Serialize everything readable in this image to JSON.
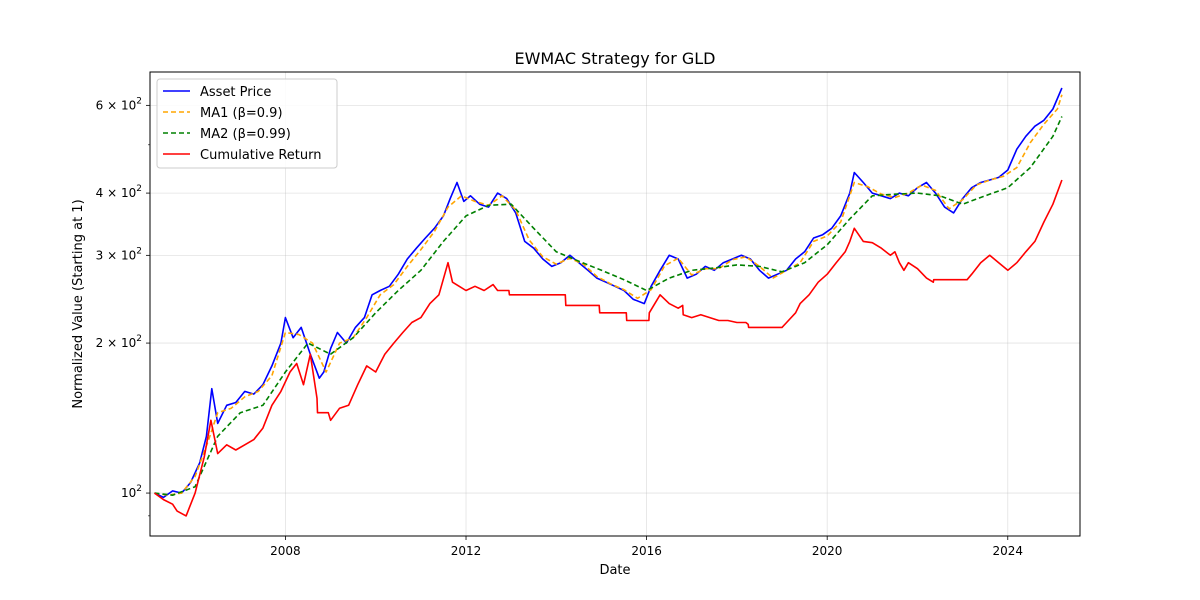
{
  "chart_data": {
    "type": "line",
    "title": "EWMAC Strategy for GLD",
    "xlabel": "Date",
    "ylabel": "Normalized Value (Starting at 1)",
    "yscale": "log",
    "ylim": [
      82,
      700
    ],
    "xlim": [
      2005.0,
      2025.6
    ],
    "grid": true,
    "legend_position": "top-left",
    "x_ticks": [
      {
        "value": 2008,
        "label": "2008"
      },
      {
        "value": 2012,
        "label": "2012"
      },
      {
        "value": 2016,
        "label": "2016"
      },
      {
        "value": 2020,
        "label": "2020"
      },
      {
        "value": 2024,
        "label": "2024"
      }
    ],
    "y_major_ticks": [
      {
        "value": 100,
        "base": "10",
        "exp": "2",
        "mult": ""
      },
      {
        "value": 200,
        "base": "10",
        "exp": "2",
        "mult": "2 × "
      },
      {
        "value": 300,
        "base": "10",
        "exp": "2",
        "mult": "3 × "
      },
      {
        "value": 400,
        "base": "10",
        "exp": "2",
        "mult": "4 × "
      },
      {
        "value": 600,
        "base": "10",
        "exp": "2",
        "mult": "6 × "
      }
    ],
    "series": [
      {
        "name": "Asset Price",
        "color": "#0000ff",
        "dash": "solid",
        "x": [
          2005.1,
          2005.3,
          2005.5,
          2005.7,
          2005.9,
          2006.1,
          2006.25,
          2006.37,
          2006.5,
          2006.7,
          2006.9,
          2007.1,
          2007.3,
          2007.5,
          2007.7,
          2007.9,
          2008.0,
          2008.17,
          2008.35,
          2008.55,
          2008.75,
          2008.85,
          2009.0,
          2009.15,
          2009.35,
          2009.55,
          2009.75,
          2009.92,
          2010.1,
          2010.3,
          2010.5,
          2010.7,
          2010.9,
          2011.1,
          2011.3,
          2011.5,
          2011.65,
          2011.8,
          2011.95,
          2012.1,
          2012.3,
          2012.5,
          2012.7,
          2012.9,
          2013.1,
          2013.3,
          2013.5,
          2013.7,
          2013.9,
          2014.1,
          2014.3,
          2014.5,
          2014.7,
          2014.9,
          2015.1,
          2015.3,
          2015.5,
          2015.7,
          2015.95,
          2016.1,
          2016.3,
          2016.5,
          2016.7,
          2016.9,
          2017.1,
          2017.3,
          2017.5,
          2017.7,
          2017.9,
          2018.1,
          2018.3,
          2018.5,
          2018.7,
          2018.9,
          2019.1,
          2019.3,
          2019.5,
          2019.7,
          2019.9,
          2020.1,
          2020.3,
          2020.5,
          2020.6,
          2020.8,
          2021.0,
          2021.2,
          2021.4,
          2021.6,
          2021.8,
          2022.0,
          2022.2,
          2022.4,
          2022.6,
          2022.8,
          2023.0,
          2023.2,
          2023.4,
          2023.6,
          2023.8,
          2024.0,
          2024.2,
          2024.4,
          2024.6,
          2024.8,
          2025.0,
          2025.2
        ],
        "y": [
          100,
          98,
          101,
          100,
          105,
          115,
          130,
          162,
          138,
          150,
          152,
          160,
          158,
          165,
          180,
          200,
          225,
          205,
          215,
          190,
          170,
          175,
          195,
          210,
          200,
          215,
          225,
          250,
          255,
          260,
          275,
          295,
          310,
          325,
          340,
          360,
          390,
          420,
          385,
          395,
          380,
          375,
          400,
          390,
          365,
          320,
          310,
          295,
          285,
          290,
          300,
          290,
          280,
          270,
          265,
          260,
          255,
          245,
          240,
          260,
          280,
          300,
          295,
          270,
          275,
          285,
          280,
          290,
          295,
          300,
          295,
          280,
          270,
          275,
          280,
          295,
          305,
          325,
          330,
          340,
          360,
          400,
          440,
          420,
          400,
          395,
          390,
          400,
          395,
          410,
          420,
          400,
          375,
          365,
          390,
          410,
          420,
          425,
          430,
          445,
          490,
          520,
          545,
          560,
          590,
          650
        ]
      },
      {
        "name": "MA1 (β=0.9)",
        "color": "#ffa500",
        "dash": "dashed",
        "x": [
          2005.1,
          2005.4,
          2005.7,
          2006.0,
          2006.3,
          2006.5,
          2006.8,
          2007.1,
          2007.4,
          2007.7,
          2008.0,
          2008.3,
          2008.6,
          2008.9,
          2009.2,
          2009.5,
          2009.8,
          2010.1,
          2010.4,
          2010.7,
          2011.0,
          2011.3,
          2011.6,
          2011.9,
          2012.2,
          2012.5,
          2012.8,
          2013.1,
          2013.4,
          2013.7,
          2014.0,
          2014.3,
          2014.6,
          2014.9,
          2015.2,
          2015.5,
          2015.8,
          2016.1,
          2016.4,
          2016.7,
          2017.0,
          2017.3,
          2017.6,
          2017.9,
          2018.2,
          2018.5,
          2018.8,
          2019.1,
          2019.4,
          2019.7,
          2020.0,
          2020.3,
          2020.6,
          2020.9,
          2021.2,
          2021.5,
          2021.8,
          2022.1,
          2022.4,
          2022.7,
          2023.0,
          2023.3,
          2023.6,
          2023.9,
          2024.2,
          2024.5,
          2024.8,
          2025.1,
          2025.2
        ],
        "y": [
          100,
          99,
          100,
          108,
          128,
          145,
          148,
          156,
          160,
          172,
          210,
          208,
          200,
          175,
          200,
          205,
          225,
          250,
          262,
          285,
          308,
          335,
          375,
          395,
          385,
          378,
          395,
          370,
          322,
          298,
          288,
          296,
          288,
          272,
          263,
          256,
          246,
          256,
          286,
          296,
          274,
          282,
          282,
          294,
          298,
          285,
          270,
          280,
          290,
          320,
          328,
          350,
          420,
          412,
          398,
          392,
          400,
          415,
          405,
          372,
          388,
          415,
          425,
          432,
          450,
          505,
          550,
          590,
          630
        ]
      },
      {
        "name": "MA2 (β=0.99)",
        "color": "#008000",
        "dash": "dashed",
        "x": [
          2005.1,
          2005.5,
          2006.0,
          2006.5,
          2007.0,
          2007.5,
          2008.0,
          2008.5,
          2009.0,
          2009.5,
          2010.0,
          2010.5,
          2011.0,
          2011.5,
          2012.0,
          2012.5,
          2013.0,
          2013.5,
          2014.0,
          2014.5,
          2015.0,
          2015.5,
          2016.0,
          2016.5,
          2017.0,
          2017.5,
          2018.0,
          2018.5,
          2019.0,
          2019.5,
          2020.0,
          2020.5,
          2021.0,
          2021.5,
          2022.0,
          2022.5,
          2023.0,
          2023.5,
          2024.0,
          2024.5,
          2025.0,
          2025.2
        ],
        "y": [
          100,
          99,
          103,
          130,
          145,
          150,
          175,
          200,
          190,
          205,
          230,
          255,
          280,
          320,
          360,
          378,
          380,
          340,
          305,
          292,
          280,
          268,
          255,
          270,
          280,
          283,
          287,
          285,
          278,
          290,
          315,
          355,
          395,
          398,
          400,
          395,
          380,
          395,
          410,
          450,
          520,
          570
        ]
      },
      {
        "name": "Cumulative Return",
        "color": "#ff0000",
        "dash": "solid",
        "x": [
          2005.1,
          2005.3,
          2005.5,
          2005.6,
          2005.8,
          2006.0,
          2006.2,
          2006.35,
          2006.5,
          2006.7,
          2006.9,
          2007.1,
          2007.3,
          2007.5,
          2007.7,
          2007.9,
          2008.1,
          2008.25,
          2008.4,
          2008.55,
          2008.7,
          2008.71,
          2008.95,
          2009.0,
          2009.2,
          2009.4,
          2009.6,
          2009.8,
          2010.0,
          2010.2,
          2010.4,
          2010.6,
          2010.8,
          2011.0,
          2011.2,
          2011.4,
          2011.6,
          2011.7,
          2011.85,
          2012.0,
          2012.2,
          2012.4,
          2012.6,
          2012.7,
          2012.95,
          2012.96,
          2014.2,
          2014.21,
          2014.95,
          2014.96,
          2015.55,
          2015.56,
          2016.05,
          2016.06,
          2016.3,
          2016.5,
          2016.7,
          2016.8,
          2016.81,
          2017.0,
          2017.2,
          2017.4,
          2017.6,
          2017.8,
          2018.0,
          2018.2,
          2018.25,
          2018.26,
          2019.0,
          2019.1,
          2019.3,
          2019.4,
          2019.6,
          2019.8,
          2020.0,
          2020.2,
          2020.4,
          2020.5,
          2020.6,
          2020.8,
          2021.0,
          2021.2,
          2021.4,
          2021.5,
          2021.6,
          2021.7,
          2021.8,
          2022.0,
          2022.2,
          2022.35,
          2022.36,
          2023.1,
          2023.2,
          2023.4,
          2023.6,
          2023.8,
          2024.0,
          2024.2,
          2024.4,
          2024.6,
          2024.8,
          2025.0,
          2025.2
        ],
        "y": [
          100,
          97,
          95,
          92,
          90,
          100,
          118,
          140,
          120,
          125,
          122,
          125,
          128,
          135,
          150,
          160,
          175,
          182,
          165,
          190,
          155,
          145,
          145,
          140,
          148,
          150,
          165,
          180,
          175,
          190,
          200,
          210,
          220,
          225,
          240,
          250,
          290,
          265,
          260,
          255,
          260,
          255,
          262,
          255,
          255,
          250,
          250,
          238,
          238,
          230,
          230,
          222,
          222,
          230,
          250,
          240,
          235,
          238,
          228,
          225,
          228,
          225,
          222,
          222,
          220,
          220,
          218,
          215,
          215,
          220,
          230,
          240,
          250,
          265,
          275,
          290,
          305,
          320,
          340,
          320,
          318,
          310,
          300,
          305,
          290,
          280,
          290,
          282,
          270,
          265,
          268,
          268,
          275,
          290,
          300,
          290,
          280,
          290,
          305,
          320,
          350,
          380,
          425
        ]
      }
    ]
  }
}
